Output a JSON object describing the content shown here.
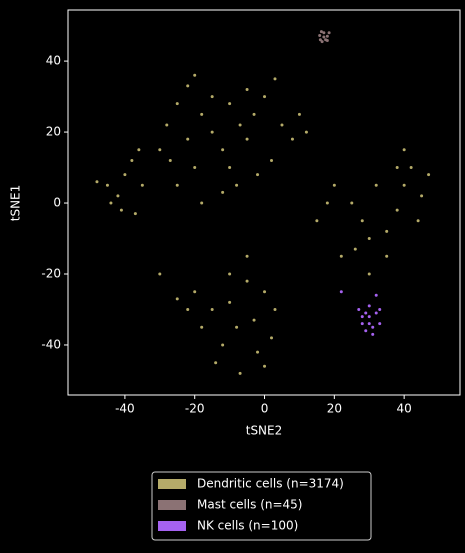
{
  "chart_data": {
    "type": "scatter",
    "xlabel": "tSNE2",
    "ylabel": "tSNE1",
    "xlim": [
      -56.3,
      56
    ],
    "ylim": [
      -54.1,
      54.4
    ],
    "xticks": [
      -40,
      -20,
      0,
      20,
      40
    ],
    "yticks": [
      -40,
      -20,
      0,
      20,
      40
    ],
    "legend": "bottom",
    "series": [
      {
        "name": "Dendritic cells (n=3174)",
        "color": "#b5ab69",
        "x": [
          -45,
          -42,
          -40,
          -38,
          -36,
          -44,
          -48,
          -37,
          -41,
          -35,
          -30,
          -28,
          -25,
          -22,
          -20,
          -18,
          -15,
          -12,
          -10,
          -8,
          -5,
          -3,
          0,
          3,
          5,
          8,
          10,
          12,
          -20,
          -25,
          -15,
          -10,
          -5,
          -12,
          -18,
          -2,
          2,
          -7,
          -22,
          -27,
          20,
          25,
          28,
          30,
          35,
          38,
          40,
          42,
          45,
          40,
          32,
          26,
          22,
          35,
          30,
          44,
          38,
          18,
          15,
          47,
          -20,
          -15,
          -10,
          -8,
          -12,
          -5,
          0,
          3,
          -2,
          0,
          -18,
          -22,
          -10,
          -5,
          -30,
          -14,
          2,
          -7,
          -25,
          -3
        ],
        "y": [
          5,
          2,
          8,
          12,
          15,
          0,
          6,
          -3,
          -2,
          5,
          15,
          22,
          28,
          33,
          36,
          25,
          20,
          15,
          10,
          5,
          18,
          25,
          30,
          35,
          22,
          18,
          25,
          20,
          10,
          5,
          30,
          28,
          32,
          3,
          0,
          8,
          12,
          22,
          18,
          12,
          5,
          0,
          -5,
          -10,
          -8,
          -2,
          5,
          10,
          2,
          15,
          5,
          -13,
          -15,
          -15,
          -20,
          -5,
          10,
          0,
          -5,
          8,
          -25,
          -30,
          -28,
          -35,
          -40,
          -22,
          -25,
          -30,
          -42,
          -46,
          -35,
          -30,
          -20,
          -15,
          -20,
          -45,
          -38,
          -48,
          -27,
          -33
        ]
      },
      {
        "name": "Mast cells (n=45)",
        "color": "#8b7274",
        "x": [
          16,
          17,
          18,
          16.5,
          17.5,
          18.5,
          15.8,
          17,
          18,
          16.3
        ],
        "y": [
          46,
          48,
          47,
          45.5,
          46,
          48,
          47.2,
          46.8,
          45.8,
          48.3
        ]
      },
      {
        "name": "NK cells (n=100)",
        "color": "#a562f0",
        "x": [
          28,
          30,
          32,
          29,
          31,
          33,
          27,
          30,
          32,
          31,
          28,
          29,
          33,
          30,
          22
        ],
        "y": [
          -32,
          -34,
          -31,
          -36,
          -35,
          -30,
          -30,
          -29,
          -26,
          -37,
          -34,
          -31,
          -34,
          -32,
          -25
        ]
      }
    ]
  }
}
